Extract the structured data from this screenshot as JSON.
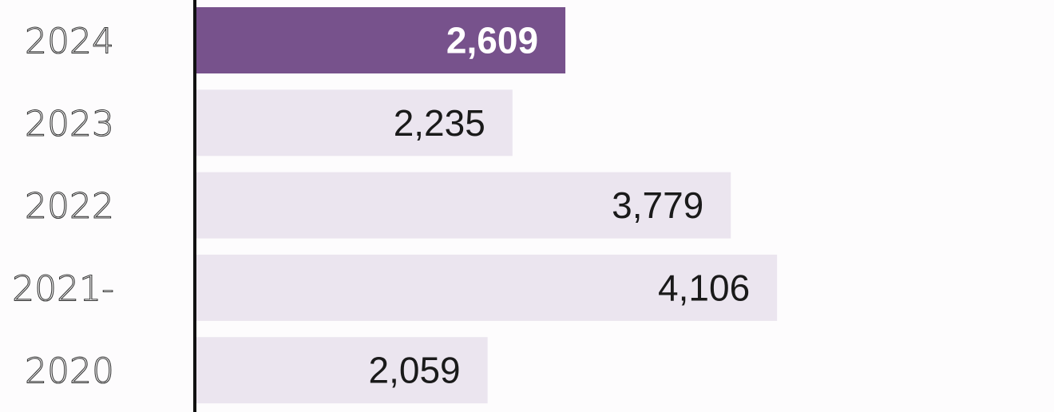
{
  "chart_data": {
    "type": "bar",
    "orientation": "horizontal",
    "title": "",
    "xlabel": "",
    "ylabel": "",
    "categories": [
      "2024",
      "2023",
      "2022",
      "2021-",
      "2020"
    ],
    "values": [
      2609,
      2235,
      3779,
      4106,
      2059
    ],
    "value_labels": [
      "2,609",
      "2,235",
      "3,779",
      "4,106",
      "2,059"
    ],
    "highlight_index": 0,
    "xlim": [
      0,
      6000
    ],
    "grid": false,
    "legend": "none",
    "colors": {
      "highlight_bar": "#77528c",
      "bar": "#ebe5ef",
      "axis": "#111111",
      "highlight_label": "#ffffff",
      "label": "#1a1a1a"
    }
  }
}
